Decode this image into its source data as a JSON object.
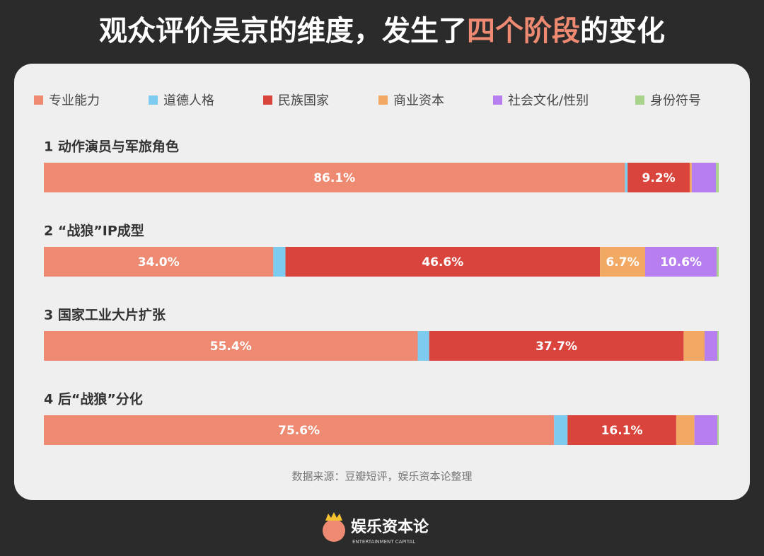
{
  "chart_data": {
    "type": "stacked_bar_horizontal",
    "title_parts": [
      "观众评价吴京的维度，发生了",
      "四个阶段",
      "的变化"
    ],
    "title_highlight_color": "#ee8a72",
    "categories": [
      "1 动作演员与军旅角色",
      "2 “战狼”IP成型",
      "3 国家工业大片扩张",
      "4 后“战狼”分化"
    ],
    "xlim": [
      0,
      100
    ],
    "series": [
      {
        "name": "专业能力",
        "color": "#ee8a72",
        "values": [
          86.1,
          34.0,
          55.4,
          75.6
        ],
        "value_labels": [
          "86.1%",
          "34.0%",
          "55.4%",
          "75.6%"
        ]
      },
      {
        "name": "道德人格",
        "color": "#7dcbef",
        "values": [
          0.4,
          1.8,
          1.7,
          2.0
        ],
        "value_labels": [
          null,
          null,
          null,
          null
        ]
      },
      {
        "name": "民族国家",
        "color": "#d9453c",
        "values": [
          9.2,
          46.6,
          37.7,
          16.1
        ],
        "value_labels": [
          "9.2%",
          "46.6%",
          "37.7%",
          "16.1%"
        ]
      },
      {
        "name": "商业资本",
        "color": "#f2a964",
        "values": [
          0.3,
          6.7,
          3.1,
          2.7
        ],
        "value_labels": [
          null,
          "6.7%",
          null,
          null
        ]
      },
      {
        "name": "社会文化/性别",
        "color": "#b77ef0",
        "values": [
          3.6,
          10.6,
          1.9,
          3.4
        ],
        "value_labels": [
          null,
          "10.6%",
          null,
          null
        ]
      },
      {
        "name": "身份符号",
        "color": "#a9d38c",
        "values": [
          0.4,
          0.3,
          0.2,
          0.2
        ],
        "value_labels": [
          null,
          null,
          null,
          null
        ]
      }
    ],
    "source": "数据来源：豆瓣短评，娱乐资本论整理",
    "brand": "娱乐资本论",
    "brand_en": "ENTERTAINMENT CAPITAL"
  }
}
